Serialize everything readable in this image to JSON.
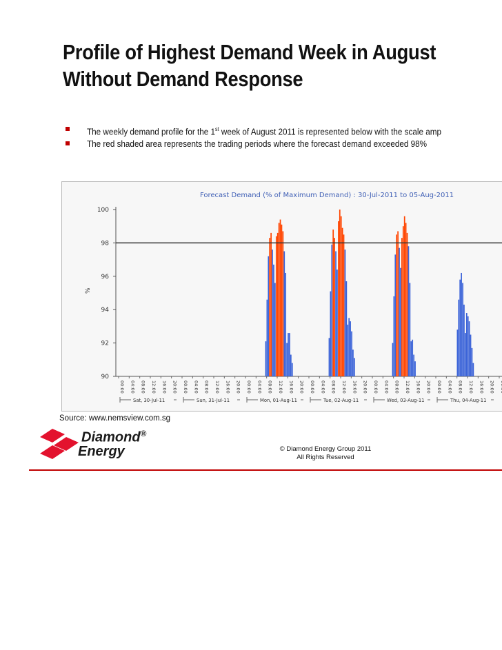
{
  "slide": {
    "title_line1": "Profile of Highest Demand Week in August",
    "title_line2": "Without Demand Response",
    "bullets": [
      {
        "text_before": "The weekly demand profile for the 1",
        "sup": "st",
        "text_after": " week of August 2011 is represented below with the scale amp"
      },
      {
        "text": "The red shaded area represents the trading periods where the forecast demand exceeded 98%"
      }
    ],
    "source": "Source: www.nemsview.com.sg",
    "logo": {
      "word1": "Diamond",
      "reg": "®",
      "word2": "Energy"
    },
    "copyright_line1": "© Diamond Energy Group 2011",
    "copyright_line2": "All Rights Reserved",
    "colors": {
      "accent": "#c00000",
      "blue_bar": "#3b63d8",
      "red_bar": "#ff4500",
      "threshold_line": "#333333",
      "chart_title": "#3f5fb5"
    }
  },
  "chart_data": {
    "type": "bar",
    "title": "Forecast Demand (% of Maximum Demand) : 30-Jul-2011 to 05-Aug-2011",
    "ylabel": "%",
    "ylim": [
      90,
      100
    ],
    "yticks": [
      "90",
      "92",
      "94",
      "96",
      "98",
      "100"
    ],
    "threshold": 98,
    "x_ticks": [
      "00:00",
      "04:00",
      "08:00",
      "12:00",
      "16:00",
      "20:00"
    ],
    "days": [
      "Sat, 30-Jul-11",
      "Sun, 31-Jul-11",
      "Mon, 01-Aug-11",
      "Tue, 02-Aug-11",
      "Wed, 03-Aug-11",
      "Thu, 04-Aug-11"
    ],
    "series": [
      {
        "name": "Mon, 01-Aug-11",
        "start_hour": 8.5,
        "values": [
          92.1,
          94.6,
          97.2,
          98.3,
          98.6,
          97.6,
          96.7,
          95.6,
          98.4,
          98.6,
          99.2,
          99.4,
          99.1,
          98.7,
          97.5,
          96.2,
          92.0,
          92.6,
          92.6,
          91.3,
          90.8
        ]
      },
      {
        "name": "Tue, 02-Aug-11",
        "start_hour": 8.5,
        "values": [
          92.3,
          95.1,
          97.9,
          98.8,
          98.3,
          97.5,
          96.4,
          99.3,
          100.0,
          99.6,
          98.9,
          98.5,
          97.6,
          95.7,
          93.1,
          93.5,
          93.3,
          92.7,
          91.6,
          91.1
        ]
      },
      {
        "name": "Wed, 03-Aug-11",
        "start_hour": 8.5,
        "values": [
          92.0,
          94.8,
          97.3,
          98.5,
          98.7,
          97.7,
          96.5,
          98.3,
          99.0,
          99.6,
          99.2,
          98.6,
          97.8,
          95.6,
          92.1,
          92.2,
          91.3,
          90.9
        ]
      },
      {
        "name": "Thu, 04-Aug-11",
        "start_hour": 9.0,
        "values": [
          92.8,
          94.6,
          95.8,
          96.2,
          95.6,
          94.3,
          92.6,
          93.8,
          93.6,
          93.3,
          92.5,
          91.7,
          90.8
        ]
      }
    ]
  }
}
